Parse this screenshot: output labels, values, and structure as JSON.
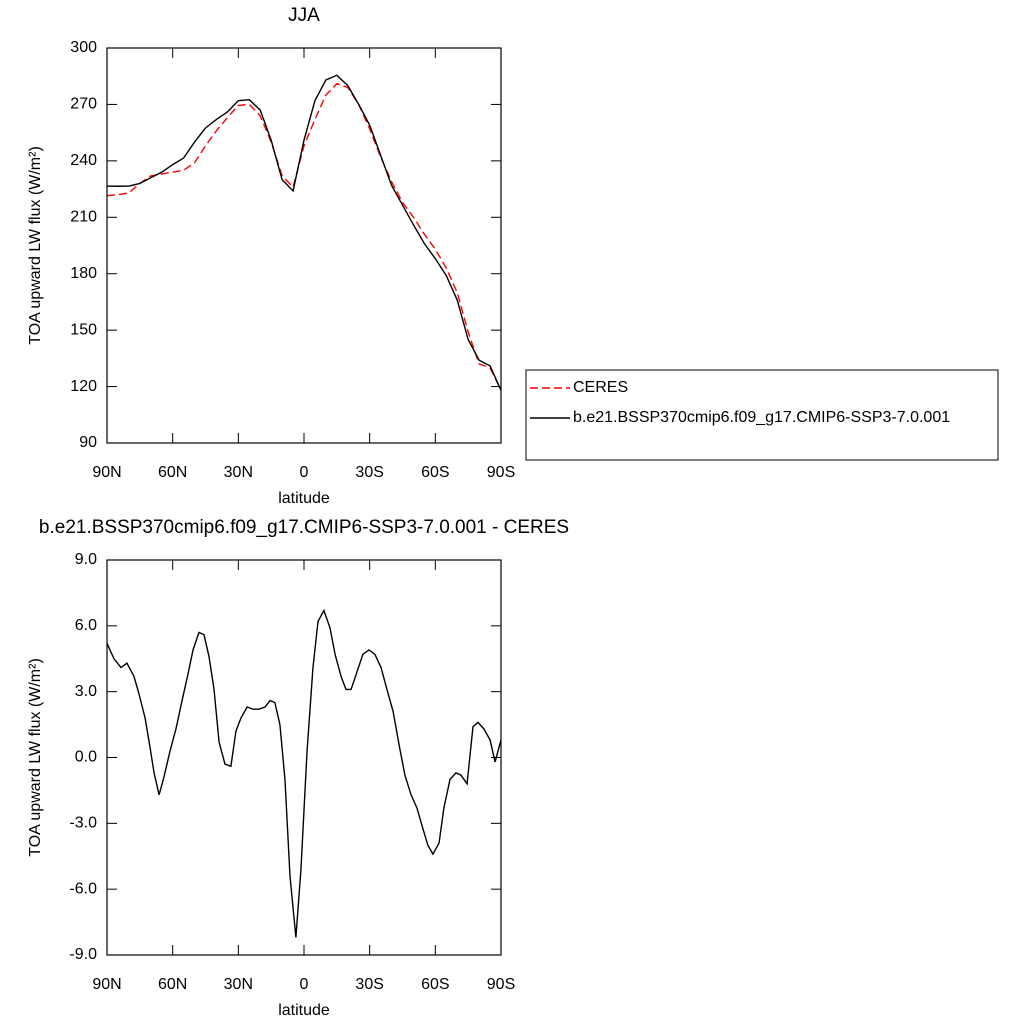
{
  "chart_data": [
    {
      "type": "line",
      "title": "JJA",
      "xlabel": "latitude",
      "ylabel": "TOA upward LW flux (W/m²)",
      "x": [
        90,
        85,
        80,
        75,
        70,
        65,
        60,
        55,
        50,
        45,
        40,
        35,
        30,
        25,
        20,
        15,
        10,
        5,
        0,
        -5,
        -10,
        -15,
        -20,
        -25,
        -30,
        -35,
        -40,
        -45,
        -50,
        -55,
        -60,
        -65,
        -70,
        -75,
        -80,
        -85,
        -90
      ],
      "series": [
        {
          "name": "CERES",
          "color": "#ff0000",
          "dash": true,
          "values": [
            221.5,
            222,
            223,
            228,
            232,
            233,
            234,
            235,
            239,
            248,
            256,
            263,
            269.5,
            270,
            264,
            250,
            232,
            226,
            248,
            262,
            275,
            281,
            279,
            270,
            257,
            242,
            229,
            218,
            210,
            201,
            193,
            183,
            170,
            149,
            132,
            130,
            118
          ]
        },
        {
          "name": "b.e21.BSSP370cmip6.f09_g17.CMIP6-SSP3-7.0.001",
          "color": "#000000",
          "dash": false,
          "values": [
            226.6,
            226.5,
            226.6,
            228,
            231,
            234,
            238,
            241.5,
            250,
            257.5,
            262,
            266,
            272,
            272.5,
            267,
            251,
            230,
            224,
            251,
            272,
            283,
            285.5,
            280,
            270,
            259,
            243,
            227,
            216.5,
            206,
            196,
            188,
            179,
            166,
            145,
            134,
            131,
            118
          ]
        }
      ],
      "xlim": [
        90,
        -90
      ],
      "xticks": [
        {
          "value": 90,
          "label": "90N"
        },
        {
          "value": 60,
          "label": "60N"
        },
        {
          "value": 30,
          "label": "30N"
        },
        0,
        {
          "value": -30,
          "label": "30S"
        },
        {
          "value": -60,
          "label": "60S"
        },
        {
          "value": -90,
          "label": "90S"
        }
      ],
      "ylim": [
        90,
        300
      ],
      "yticks": [
        90,
        120,
        150,
        180,
        210,
        240,
        270,
        300
      ],
      "legend": "right"
    },
    {
      "type": "line",
      "title": "b.e21.BSSP370cmip6.f09_g17.CMIP6-SSP3-7.0.001 - CERES",
      "xlabel": "latitude",
      "ylabel": "TOA upward LW flux (W/m²)",
      "x": [
        90,
        86.8,
        83.6,
        80.9,
        77.7,
        75.4,
        72.6,
        70.4,
        68.5,
        66.2,
        64.0,
        61.2,
        58.5,
        55.7,
        53.0,
        50.7,
        48.0,
        45.7,
        43.4,
        41.1,
        38.8,
        36.1,
        33.4,
        31.1,
        28.8,
        26.0,
        23.3,
        20.6,
        17.8,
        15.5,
        13.3,
        11.0,
        8.7,
        6.4,
        3.7,
        1.4,
        -1.4,
        -4.1,
        -6.4,
        -9.1,
        -11.9,
        -14.2,
        -16.9,
        -19.2,
        -21.5,
        -24.2,
        -26.9,
        -29.7,
        -32.4,
        -35.2,
        -37.9,
        -40.7,
        -43.4,
        -46.1,
        -48.9,
        -51.6,
        -53.9,
        -56.6,
        -58.9,
        -61.7,
        -63.9,
        -66.7,
        -69.4,
        -71.7,
        -74.5,
        -77.2,
        -79.5,
        -82.2,
        -85.0,
        -87.3,
        -90
      ],
      "series": [
        {
          "color": "#000000",
          "dash": false,
          "values": [
            5.2,
            4.5,
            4.1,
            4.3,
            3.7,
            2.9,
            1.8,
            0.5,
            -0.7,
            -1.7,
            -0.9,
            0.3,
            1.3,
            2.6,
            3.8,
            4.9,
            5.7,
            5.6,
            4.6,
            3.1,
            0.7,
            -0.3,
            -0.4,
            1.2,
            1.8,
            2.3,
            2.2,
            2.2,
            2.3,
            2.6,
            2.5,
            1.5,
            -1.0,
            -5.4,
            -8.2,
            -5.1,
            0.3,
            4.1,
            6.2,
            6.7,
            5.9,
            4.7,
            3.7,
            3.1,
            3.1,
            3.9,
            4.7,
            4.9,
            4.7,
            4.1,
            3.1,
            2.1,
            0.6,
            -0.8,
            -1.7,
            -2.3,
            -3.1,
            -4.0,
            -4.4,
            -3.9,
            -2.3,
            -1.0,
            -0.7,
            -0.8,
            -1.2,
            1.4,
            1.6,
            1.3,
            0.8,
            -0.2,
            0.8
          ]
        }
      ],
      "xlim": [
        90,
        -90
      ],
      "xticks": [
        {
          "value": 90,
          "label": "90N"
        },
        {
          "value": 60,
          "label": "60N"
        },
        {
          "value": 30,
          "label": "30N"
        },
        0,
        {
          "value": -30,
          "label": "30S"
        },
        {
          "value": -60,
          "label": "60S"
        },
        {
          "value": -90,
          "label": "90S"
        }
      ],
      "ylim": [
        -9,
        9
      ],
      "yticks": [
        {
          "value": -9,
          "label": "-9.0"
        },
        {
          "value": -6,
          "label": "-6.0"
        },
        {
          "value": -3,
          "label": "-3.0"
        },
        {
          "value": 0,
          "label": "0.0"
        },
        {
          "value": 3,
          "label": "3.0"
        },
        {
          "value": 6,
          "label": "6.0"
        },
        {
          "value": 9,
          "label": "9.0"
        }
      ]
    }
  ]
}
